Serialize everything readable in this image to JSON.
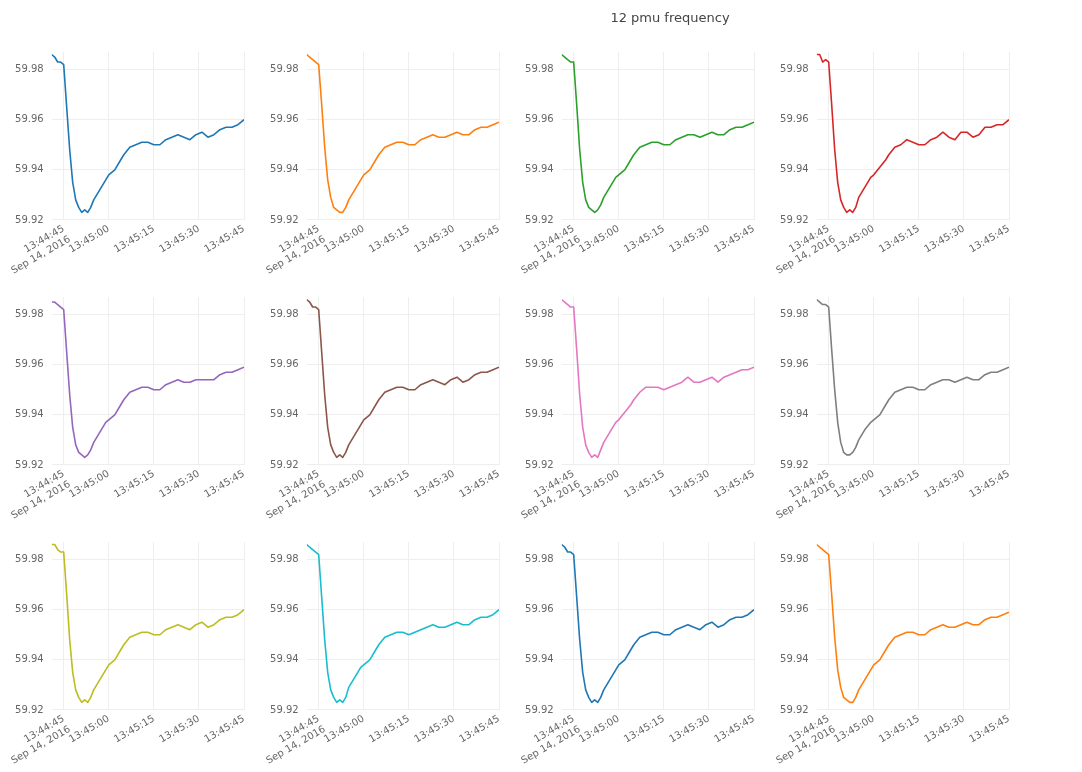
{
  "chart_data": [
    {
      "type": "line",
      "x": [
        "2016-09-14T13:44:41",
        "2016-09-14T13:44:42",
        "2016-09-14T13:44:43",
        "2016-09-14T13:44:44",
        "2016-09-14T13:44:45",
        "2016-09-14T13:44:46",
        "2016-09-14T13:44:47",
        "2016-09-14T13:44:48",
        "2016-09-14T13:44:49",
        "2016-09-14T13:44:50",
        "2016-09-14T13:44:51",
        "2016-09-14T13:44:52",
        "2016-09-14T13:44:53",
        "2016-09-14T13:44:54",
        "2016-09-14T13:44:55",
        "2016-09-14T13:44:57",
        "2016-09-14T13:44:59",
        "2016-09-14T13:45:00",
        "2016-09-14T13:45:02",
        "2016-09-14T13:45:04",
        "2016-09-14T13:45:05",
        "2016-09-14T13:45:07",
        "2016-09-14T13:45:09",
        "2016-09-14T13:45:11",
        "2016-09-14T13:45:13",
        "2016-09-14T13:45:15",
        "2016-09-14T13:45:17",
        "2016-09-14T13:45:19",
        "2016-09-14T13:45:21",
        "2016-09-14T13:45:23",
        "2016-09-14T13:45:25",
        "2016-09-14T13:45:27",
        "2016-09-14T13:45:29",
        "2016-09-14T13:45:31",
        "2016-09-14T13:45:33",
        "2016-09-14T13:45:35",
        "2016-09-14T13:45:37",
        "2016-09-14T13:45:39",
        "2016-09-14T13:45:41",
        "2016-09-14T13:45:43",
        "2016-09-14T13:45:45"
      ],
      "series": [
        {
          "color": "#1f77b4",
          "values": [
            59.986,
            59.985,
            59.983,
            59.983,
            59.982,
            59.965,
            59.948,
            59.935,
            59.928,
            59.925,
            59.923,
            59.924,
            59.923,
            59.925,
            59.928,
            59.932,
            59.936,
            59.938,
            59.94,
            59.944,
            59.946,
            59.949,
            59.95,
            59.951,
            59.951,
            59.95,
            59.95,
            59.952,
            59.953,
            59.954,
            59.953,
            59.952,
            59.954,
            59.955,
            59.953,
            59.954,
            59.956,
            59.957,
            59.957,
            59.958,
            59.96
          ]
        }
      ],
      "xlim": [
        "2016-09-14T13:44:41",
        "2016-09-14T13:45:45"
      ],
      "xticks": [
        {
          "value": "2016-09-14T13:44:45",
          "label": "13:44:45\nSep 14, 2016"
        },
        {
          "value": "2016-09-14T13:45:00",
          "label": "13:45:00"
        },
        {
          "value": "2016-09-14T13:45:15",
          "label": "13:45:15"
        },
        {
          "value": "2016-09-14T13:45:30",
          "label": "13:45:30"
        },
        {
          "value": "2016-09-14T13:45:45",
          "label": "13:45:45"
        }
      ],
      "ylim": [
        59.92,
        59.987
      ],
      "yticks": [
        59.92,
        59.94,
        59.96,
        59.98
      ],
      "grid": true
    },
    {
      "type": "line",
      "x": [
        "2016-09-14T13:44:41",
        "2016-09-14T13:44:42",
        "2016-09-14T13:44:43",
        "2016-09-14T13:44:44",
        "2016-09-14T13:44:45",
        "2016-09-14T13:44:46",
        "2016-09-14T13:44:47",
        "2016-09-14T13:44:48",
        "2016-09-14T13:44:49",
        "2016-09-14T13:44:50",
        "2016-09-14T13:44:51",
        "2016-09-14T13:44:52",
        "2016-09-14T13:44:53",
        "2016-09-14T13:44:54",
        "2016-09-14T13:44:55",
        "2016-09-14T13:44:57",
        "2016-09-14T13:44:59",
        "2016-09-14T13:45:00",
        "2016-09-14T13:45:02",
        "2016-09-14T13:45:04",
        "2016-09-14T13:45:05",
        "2016-09-14T13:45:07",
        "2016-09-14T13:45:09",
        "2016-09-14T13:45:11",
        "2016-09-14T13:45:13",
        "2016-09-14T13:45:15",
        "2016-09-14T13:45:17",
        "2016-09-14T13:45:19",
        "2016-09-14T13:45:21",
        "2016-09-14T13:45:23",
        "2016-09-14T13:45:25",
        "2016-09-14T13:45:27",
        "2016-09-14T13:45:29",
        "2016-09-14T13:45:31",
        "2016-09-14T13:45:33",
        "2016-09-14T13:45:35",
        "2016-09-14T13:45:37",
        "2016-09-14T13:45:39",
        "2016-09-14T13:45:41",
        "2016-09-14T13:45:43",
        "2016-09-14T13:45:45"
      ],
      "series": [
        {
          "color": "#ff7f0e",
          "values": [
            59.986,
            59.985,
            59.984,
            59.983,
            59.982,
            59.966,
            59.949,
            59.936,
            59.929,
            59.925,
            59.924,
            59.923,
            59.923,
            59.925,
            59.928,
            59.932,
            59.936,
            59.938,
            59.94,
            59.944,
            59.946,
            59.949,
            59.95,
            59.951,
            59.951,
            59.95,
            59.95,
            59.952,
            59.953,
            59.954,
            59.953,
            59.953,
            59.954,
            59.955,
            59.954,
            59.954,
            59.956,
            59.957,
            59.957,
            59.958,
            59.959
          ]
        }
      ],
      "xlim": [
        "2016-09-14T13:44:41",
        "2016-09-14T13:45:45"
      ],
      "xticks": [
        {
          "value": "2016-09-14T13:44:45",
          "label": "13:44:45\nSep 14, 2016"
        },
        {
          "value": "2016-09-14T13:45:00",
          "label": "13:45:00"
        },
        {
          "value": "2016-09-14T13:45:15",
          "label": "13:45:15"
        },
        {
          "value": "2016-09-14T13:45:30",
          "label": "13:45:30"
        },
        {
          "value": "2016-09-14T13:45:45",
          "label": "13:45:45"
        }
      ],
      "ylim": [
        59.92,
        59.987
      ],
      "yticks": [
        59.92,
        59.94,
        59.96,
        59.98
      ],
      "grid": true
    },
    {
      "type": "line",
      "x": [
        "2016-09-14T13:44:41",
        "2016-09-14T13:44:42",
        "2016-09-14T13:44:43",
        "2016-09-14T13:44:44",
        "2016-09-14T13:44:45",
        "2016-09-14T13:44:46",
        "2016-09-14T13:44:47",
        "2016-09-14T13:44:48",
        "2016-09-14T13:44:49",
        "2016-09-14T13:44:50",
        "2016-09-14T13:44:51",
        "2016-09-14T13:44:52",
        "2016-09-14T13:44:53",
        "2016-09-14T13:44:54",
        "2016-09-14T13:44:55",
        "2016-09-14T13:44:57",
        "2016-09-14T13:44:59",
        "2016-09-14T13:45:00",
        "2016-09-14T13:45:02",
        "2016-09-14T13:45:04",
        "2016-09-14T13:45:05",
        "2016-09-14T13:45:07",
        "2016-09-14T13:45:09",
        "2016-09-14T13:45:11",
        "2016-09-14T13:45:13",
        "2016-09-14T13:45:15",
        "2016-09-14T13:45:17",
        "2016-09-14T13:45:19",
        "2016-09-14T13:45:21",
        "2016-09-14T13:45:23",
        "2016-09-14T13:45:25",
        "2016-09-14T13:45:27",
        "2016-09-14T13:45:29",
        "2016-09-14T13:45:31",
        "2016-09-14T13:45:33",
        "2016-09-14T13:45:35",
        "2016-09-14T13:45:37",
        "2016-09-14T13:45:39",
        "2016-09-14T13:45:41",
        "2016-09-14T13:45:43",
        "2016-09-14T13:45:45"
      ],
      "title": "12 pmu frequency",
      "series": [
        {
          "color": "#2ca02c",
          "values": [
            59.986,
            59.985,
            59.984,
            59.983,
            59.983,
            59.966,
            59.948,
            59.935,
            59.928,
            59.925,
            59.924,
            59.923,
            59.924,
            59.926,
            59.929,
            59.933,
            59.937,
            59.938,
            59.94,
            59.944,
            59.946,
            59.949,
            59.95,
            59.951,
            59.951,
            59.95,
            59.95,
            59.952,
            59.953,
            59.954,
            59.954,
            59.953,
            59.954,
            59.955,
            59.954,
            59.954,
            59.956,
            59.957,
            59.957,
            59.958,
            59.959
          ]
        }
      ],
      "xlim": [
        "2016-09-14T13:44:41",
        "2016-09-14T13:45:45"
      ],
      "xticks": [
        {
          "value": "2016-09-14T13:44:45",
          "label": "13:44:45\nSep 14, 2016"
        },
        {
          "value": "2016-09-14T13:45:00",
          "label": "13:45:00"
        },
        {
          "value": "2016-09-14T13:45:15",
          "label": "13:45:15"
        },
        {
          "value": "2016-09-14T13:45:30",
          "label": "13:45:30"
        },
        {
          "value": "2016-09-14T13:45:45",
          "label": "13:45:45"
        }
      ],
      "ylim": [
        59.92,
        59.987
      ],
      "yticks": [
        59.92,
        59.94,
        59.96,
        59.98
      ],
      "grid": true
    },
    {
      "type": "line",
      "x": [
        "2016-09-14T13:44:41",
        "2016-09-14T13:44:42",
        "2016-09-14T13:44:43",
        "2016-09-14T13:44:44",
        "2016-09-14T13:44:45",
        "2016-09-14T13:44:46",
        "2016-09-14T13:44:47",
        "2016-09-14T13:44:48",
        "2016-09-14T13:44:49",
        "2016-09-14T13:44:50",
        "2016-09-14T13:44:51",
        "2016-09-14T13:44:52",
        "2016-09-14T13:44:53",
        "2016-09-14T13:44:54",
        "2016-09-14T13:44:55",
        "2016-09-14T13:44:57",
        "2016-09-14T13:44:59",
        "2016-09-14T13:45:00",
        "2016-09-14T13:45:02",
        "2016-09-14T13:45:04",
        "2016-09-14T13:45:05",
        "2016-09-14T13:45:07",
        "2016-09-14T13:45:09",
        "2016-09-14T13:45:11",
        "2016-09-14T13:45:13",
        "2016-09-14T13:45:15",
        "2016-09-14T13:45:17",
        "2016-09-14T13:45:19",
        "2016-09-14T13:45:21",
        "2016-09-14T13:45:23",
        "2016-09-14T13:45:25",
        "2016-09-14T13:45:27",
        "2016-09-14T13:45:29",
        "2016-09-14T13:45:31",
        "2016-09-14T13:45:33",
        "2016-09-14T13:45:35",
        "2016-09-14T13:45:37",
        "2016-09-14T13:45:39",
        "2016-09-14T13:45:41",
        "2016-09-14T13:45:43",
        "2016-09-14T13:45:45"
      ],
      "series": [
        {
          "color": "#d62728",
          "values": [
            59.986,
            59.986,
            59.983,
            59.984,
            59.983,
            59.966,
            59.948,
            59.935,
            59.928,
            59.925,
            59.923,
            59.924,
            59.923,
            59.925,
            59.929,
            59.933,
            59.937,
            59.938,
            59.941,
            59.944,
            59.946,
            59.949,
            59.95,
            59.952,
            59.951,
            59.95,
            59.95,
            59.952,
            59.953,
            59.955,
            59.953,
            59.952,
            59.955,
            59.955,
            59.953,
            59.954,
            59.957,
            59.957,
            59.958,
            59.958,
            59.96
          ]
        }
      ],
      "xlim": [
        "2016-09-14T13:44:41",
        "2016-09-14T13:45:45"
      ],
      "xticks": [
        {
          "value": "2016-09-14T13:44:45",
          "label": "13:44:45\nSep 14, 2016"
        },
        {
          "value": "2016-09-14T13:45:00",
          "label": "13:45:00"
        },
        {
          "value": "2016-09-14T13:45:15",
          "label": "13:45:15"
        },
        {
          "value": "2016-09-14T13:45:30",
          "label": "13:45:30"
        },
        {
          "value": "2016-09-14T13:45:45",
          "label": "13:45:45"
        }
      ],
      "ylim": [
        59.92,
        59.987
      ],
      "yticks": [
        59.92,
        59.94,
        59.96,
        59.98
      ],
      "grid": true
    },
    {
      "type": "line",
      "x": [
        "2016-09-14T13:44:41",
        "2016-09-14T13:44:42",
        "2016-09-14T13:44:43",
        "2016-09-14T13:44:44",
        "2016-09-14T13:44:45",
        "2016-09-14T13:44:46",
        "2016-09-14T13:44:47",
        "2016-09-14T13:44:48",
        "2016-09-14T13:44:49",
        "2016-09-14T13:44:50",
        "2016-09-14T13:44:51",
        "2016-09-14T13:44:52",
        "2016-09-14T13:44:53",
        "2016-09-14T13:44:54",
        "2016-09-14T13:44:55",
        "2016-09-14T13:44:57",
        "2016-09-14T13:44:59",
        "2016-09-14T13:45:00",
        "2016-09-14T13:45:02",
        "2016-09-14T13:45:04",
        "2016-09-14T13:45:05",
        "2016-09-14T13:45:07",
        "2016-09-14T13:45:09",
        "2016-09-14T13:45:11",
        "2016-09-14T13:45:13",
        "2016-09-14T13:45:15",
        "2016-09-14T13:45:17",
        "2016-09-14T13:45:19",
        "2016-09-14T13:45:21",
        "2016-09-14T13:45:23",
        "2016-09-14T13:45:25",
        "2016-09-14T13:45:27",
        "2016-09-14T13:45:29",
        "2016-09-14T13:45:31",
        "2016-09-14T13:45:33",
        "2016-09-14T13:45:35",
        "2016-09-14T13:45:37",
        "2016-09-14T13:45:39",
        "2016-09-14T13:45:41",
        "2016-09-14T13:45:43",
        "2016-09-14T13:45:45"
      ],
      "series": [
        {
          "color": "#9467bd",
          "values": [
            59.985,
            59.985,
            59.984,
            59.983,
            59.982,
            59.965,
            59.948,
            59.935,
            59.928,
            59.925,
            59.924,
            59.923,
            59.924,
            59.926,
            59.929,
            59.933,
            59.937,
            59.938,
            59.94,
            59.944,
            59.946,
            59.949,
            59.95,
            59.951,
            59.951,
            59.95,
            59.95,
            59.952,
            59.953,
            59.954,
            59.953,
            59.953,
            59.954,
            59.954,
            59.954,
            59.954,
            59.956,
            59.957,
            59.957,
            59.958,
            59.959
          ]
        }
      ],
      "xlim": [
        "2016-09-14T13:44:41",
        "2016-09-14T13:45:45"
      ],
      "xticks": [
        {
          "value": "2016-09-14T13:44:45",
          "label": "13:44:45\nSep 14, 2016"
        },
        {
          "value": "2016-09-14T13:45:00",
          "label": "13:45:00"
        },
        {
          "value": "2016-09-14T13:45:15",
          "label": "13:45:15"
        },
        {
          "value": "2016-09-14T13:45:30",
          "label": "13:45:30"
        },
        {
          "value": "2016-09-14T13:45:45",
          "label": "13:45:45"
        }
      ],
      "ylim": [
        59.92,
        59.987
      ],
      "yticks": [
        59.92,
        59.94,
        59.96,
        59.98
      ],
      "grid": true
    },
    {
      "type": "line",
      "x": [
        "2016-09-14T13:44:41",
        "2016-09-14T13:44:42",
        "2016-09-14T13:44:43",
        "2016-09-14T13:44:44",
        "2016-09-14T13:44:45",
        "2016-09-14T13:44:46",
        "2016-09-14T13:44:47",
        "2016-09-14T13:44:48",
        "2016-09-14T13:44:49",
        "2016-09-14T13:44:50",
        "2016-09-14T13:44:51",
        "2016-09-14T13:44:52",
        "2016-09-14T13:44:53",
        "2016-09-14T13:44:54",
        "2016-09-14T13:44:55",
        "2016-09-14T13:44:57",
        "2016-09-14T13:44:59",
        "2016-09-14T13:45:00",
        "2016-09-14T13:45:02",
        "2016-09-14T13:45:04",
        "2016-09-14T13:45:05",
        "2016-09-14T13:45:07",
        "2016-09-14T13:45:09",
        "2016-09-14T13:45:11",
        "2016-09-14T13:45:13",
        "2016-09-14T13:45:15",
        "2016-09-14T13:45:17",
        "2016-09-14T13:45:19",
        "2016-09-14T13:45:21",
        "2016-09-14T13:45:23",
        "2016-09-14T13:45:25",
        "2016-09-14T13:45:27",
        "2016-09-14T13:45:29",
        "2016-09-14T13:45:31",
        "2016-09-14T13:45:33",
        "2016-09-14T13:45:35",
        "2016-09-14T13:45:37",
        "2016-09-14T13:45:39",
        "2016-09-14T13:45:41",
        "2016-09-14T13:45:43",
        "2016-09-14T13:45:45"
      ],
      "series": [
        {
          "color": "#8c564b",
          "values": [
            59.986,
            59.985,
            59.983,
            59.983,
            59.982,
            59.965,
            59.948,
            59.935,
            59.928,
            59.925,
            59.923,
            59.924,
            59.923,
            59.925,
            59.928,
            59.932,
            59.936,
            59.938,
            59.94,
            59.944,
            59.946,
            59.949,
            59.95,
            59.951,
            59.951,
            59.95,
            59.95,
            59.952,
            59.953,
            59.954,
            59.953,
            59.952,
            59.954,
            59.955,
            59.953,
            59.954,
            59.956,
            59.957,
            59.957,
            59.958,
            59.959
          ]
        }
      ],
      "xlim": [
        "2016-09-14T13:44:41",
        "2016-09-14T13:45:45"
      ],
      "xticks": [
        {
          "value": "2016-09-14T13:44:45",
          "label": "13:44:45\nSep 14, 2016"
        },
        {
          "value": "2016-09-14T13:45:00",
          "label": "13:45:00"
        },
        {
          "value": "2016-09-14T13:45:15",
          "label": "13:45:15"
        },
        {
          "value": "2016-09-14T13:45:30",
          "label": "13:45:30"
        },
        {
          "value": "2016-09-14T13:45:45",
          "label": "13:45:45"
        }
      ],
      "ylim": [
        59.92,
        59.987
      ],
      "yticks": [
        59.92,
        59.94,
        59.96,
        59.98
      ],
      "grid": true
    },
    {
      "type": "line",
      "x": [
        "2016-09-14T13:44:41",
        "2016-09-14T13:44:42",
        "2016-09-14T13:44:43",
        "2016-09-14T13:44:44",
        "2016-09-14T13:44:45",
        "2016-09-14T13:44:46",
        "2016-09-14T13:44:47",
        "2016-09-14T13:44:48",
        "2016-09-14T13:44:49",
        "2016-09-14T13:44:50",
        "2016-09-14T13:44:51",
        "2016-09-14T13:44:52",
        "2016-09-14T13:44:53",
        "2016-09-14T13:44:54",
        "2016-09-14T13:44:55",
        "2016-09-14T13:44:57",
        "2016-09-14T13:44:59",
        "2016-09-14T13:45:00",
        "2016-09-14T13:45:02",
        "2016-09-14T13:45:04",
        "2016-09-14T13:45:05",
        "2016-09-14T13:45:07",
        "2016-09-14T13:45:09",
        "2016-09-14T13:45:11",
        "2016-09-14T13:45:13",
        "2016-09-14T13:45:15",
        "2016-09-14T13:45:17",
        "2016-09-14T13:45:19",
        "2016-09-14T13:45:21",
        "2016-09-14T13:45:23",
        "2016-09-14T13:45:25",
        "2016-09-14T13:45:27",
        "2016-09-14T13:45:29",
        "2016-09-14T13:45:31",
        "2016-09-14T13:45:33",
        "2016-09-14T13:45:35",
        "2016-09-14T13:45:37",
        "2016-09-14T13:45:39",
        "2016-09-14T13:45:41",
        "2016-09-14T13:45:43",
        "2016-09-14T13:45:45"
      ],
      "series": [
        {
          "color": "#e377c2",
          "values": [
            59.986,
            59.985,
            59.984,
            59.983,
            59.983,
            59.966,
            59.948,
            59.935,
            59.928,
            59.925,
            59.923,
            59.924,
            59.923,
            59.926,
            59.929,
            59.933,
            59.937,
            59.938,
            59.941,
            59.944,
            59.946,
            59.949,
            59.951,
            59.951,
            59.951,
            59.95,
            59.951,
            59.952,
            59.953,
            59.955,
            59.953,
            59.953,
            59.954,
            59.955,
            59.953,
            59.955,
            59.956,
            59.957,
            59.958,
            59.958,
            59.959
          ]
        }
      ],
      "xlim": [
        "2016-09-14T13:44:41",
        "2016-09-14T13:45:45"
      ],
      "xticks": [
        {
          "value": "2016-09-14T13:44:45",
          "label": "13:44:45\nSep 14, 2016"
        },
        {
          "value": "2016-09-14T13:45:00",
          "label": "13:45:00"
        },
        {
          "value": "2016-09-14T13:45:15",
          "label": "13:45:15"
        },
        {
          "value": "2016-09-14T13:45:30",
          "label": "13:45:30"
        },
        {
          "value": "2016-09-14T13:45:45",
          "label": "13:45:45"
        }
      ],
      "ylim": [
        59.92,
        59.987
      ],
      "yticks": [
        59.92,
        59.94,
        59.96,
        59.98
      ],
      "grid": true
    },
    {
      "type": "line",
      "x": [
        "2016-09-14T13:44:41",
        "2016-09-14T13:44:42",
        "2016-09-14T13:44:43",
        "2016-09-14T13:44:44",
        "2016-09-14T13:44:45",
        "2016-09-14T13:44:46",
        "2016-09-14T13:44:47",
        "2016-09-14T13:44:48",
        "2016-09-14T13:44:49",
        "2016-09-14T13:44:50",
        "2016-09-14T13:44:51",
        "2016-09-14T13:44:52",
        "2016-09-14T13:44:53",
        "2016-09-14T13:44:54",
        "2016-09-14T13:44:55",
        "2016-09-14T13:44:57",
        "2016-09-14T13:44:59",
        "2016-09-14T13:45:00",
        "2016-09-14T13:45:02",
        "2016-09-14T13:45:04",
        "2016-09-14T13:45:05",
        "2016-09-14T13:45:07",
        "2016-09-14T13:45:09",
        "2016-09-14T13:45:11",
        "2016-09-14T13:45:13",
        "2016-09-14T13:45:15",
        "2016-09-14T13:45:17",
        "2016-09-14T13:45:19",
        "2016-09-14T13:45:21",
        "2016-09-14T13:45:23",
        "2016-09-14T13:45:25",
        "2016-09-14T13:45:27",
        "2016-09-14T13:45:29",
        "2016-09-14T13:45:31",
        "2016-09-14T13:45:33",
        "2016-09-14T13:45:35",
        "2016-09-14T13:45:37",
        "2016-09-14T13:45:39",
        "2016-09-14T13:45:41",
        "2016-09-14T13:45:43",
        "2016-09-14T13:45:45"
      ],
      "series": [
        {
          "color": "#7f7f7f",
          "values": [
            59.986,
            59.985,
            59.984,
            59.984,
            59.983,
            59.966,
            59.95,
            59.937,
            59.929,
            59.925,
            59.924,
            59.924,
            59.925,
            59.927,
            59.93,
            59.934,
            59.937,
            59.938,
            59.94,
            59.944,
            59.946,
            59.949,
            59.95,
            59.951,
            59.951,
            59.95,
            59.95,
            59.952,
            59.953,
            59.954,
            59.954,
            59.953,
            59.954,
            59.955,
            59.954,
            59.954,
            59.956,
            59.957,
            59.957,
            59.958,
            59.959
          ]
        }
      ],
      "xlim": [
        "2016-09-14T13:44:41",
        "2016-09-14T13:45:45"
      ],
      "xticks": [
        {
          "value": "2016-09-14T13:44:45",
          "label": "13:44:45\nSep 14, 2016"
        },
        {
          "value": "2016-09-14T13:45:00",
          "label": "13:45:00"
        },
        {
          "value": "2016-09-14T13:45:15",
          "label": "13:45:15"
        },
        {
          "value": "2016-09-14T13:45:30",
          "label": "13:45:30"
        },
        {
          "value": "2016-09-14T13:45:45",
          "label": "13:45:45"
        }
      ],
      "ylim": [
        59.92,
        59.987
      ],
      "yticks": [
        59.92,
        59.94,
        59.96,
        59.98
      ],
      "grid": true
    },
    {
      "type": "line",
      "x": [
        "2016-09-14T13:44:41",
        "2016-09-14T13:44:42",
        "2016-09-14T13:44:43",
        "2016-09-14T13:44:44",
        "2016-09-14T13:44:45",
        "2016-09-14T13:44:46",
        "2016-09-14T13:44:47",
        "2016-09-14T13:44:48",
        "2016-09-14T13:44:49",
        "2016-09-14T13:44:50",
        "2016-09-14T13:44:51",
        "2016-09-14T13:44:52",
        "2016-09-14T13:44:53",
        "2016-09-14T13:44:54",
        "2016-09-14T13:44:55",
        "2016-09-14T13:44:57",
        "2016-09-14T13:44:59",
        "2016-09-14T13:45:00",
        "2016-09-14T13:45:02",
        "2016-09-14T13:45:04",
        "2016-09-14T13:45:05",
        "2016-09-14T13:45:07",
        "2016-09-14T13:45:09",
        "2016-09-14T13:45:11",
        "2016-09-14T13:45:13",
        "2016-09-14T13:45:15",
        "2016-09-14T13:45:17",
        "2016-09-14T13:45:19",
        "2016-09-14T13:45:21",
        "2016-09-14T13:45:23",
        "2016-09-14T13:45:25",
        "2016-09-14T13:45:27",
        "2016-09-14T13:45:29",
        "2016-09-14T13:45:31",
        "2016-09-14T13:45:33",
        "2016-09-14T13:45:35",
        "2016-09-14T13:45:37",
        "2016-09-14T13:45:39",
        "2016-09-14T13:45:41",
        "2016-09-14T13:45:43",
        "2016-09-14T13:45:45"
      ],
      "series": [
        {
          "color": "#bcbd22",
          "values": [
            59.986,
            59.986,
            59.984,
            59.983,
            59.983,
            59.966,
            59.948,
            59.935,
            59.928,
            59.925,
            59.923,
            59.924,
            59.923,
            59.925,
            59.928,
            59.932,
            59.936,
            59.938,
            59.94,
            59.944,
            59.946,
            59.949,
            59.95,
            59.951,
            59.951,
            59.95,
            59.95,
            59.952,
            59.953,
            59.954,
            59.953,
            59.952,
            59.954,
            59.955,
            59.953,
            59.954,
            59.956,
            59.957,
            59.957,
            59.958,
            59.96
          ]
        }
      ],
      "xlim": [
        "2016-09-14T13:44:41",
        "2016-09-14T13:45:45"
      ],
      "xticks": [
        {
          "value": "2016-09-14T13:44:45",
          "label": "13:44:45\nSep 14, 2016"
        },
        {
          "value": "2016-09-14T13:45:00",
          "label": "13:45:00"
        },
        {
          "value": "2016-09-14T13:45:15",
          "label": "13:45:15"
        },
        {
          "value": "2016-09-14T13:45:30",
          "label": "13:45:30"
        },
        {
          "value": "2016-09-14T13:45:45",
          "label": "13:45:45"
        }
      ],
      "ylim": [
        59.92,
        59.987
      ],
      "yticks": [
        59.92,
        59.94,
        59.96,
        59.98
      ],
      "grid": true
    },
    {
      "type": "line",
      "x": [
        "2016-09-14T13:44:41",
        "2016-09-14T13:44:42",
        "2016-09-14T13:44:43",
        "2016-09-14T13:44:44",
        "2016-09-14T13:44:45",
        "2016-09-14T13:44:46",
        "2016-09-14T13:44:47",
        "2016-09-14T13:44:48",
        "2016-09-14T13:44:49",
        "2016-09-14T13:44:50",
        "2016-09-14T13:44:51",
        "2016-09-14T13:44:52",
        "2016-09-14T13:44:53",
        "2016-09-14T13:44:54",
        "2016-09-14T13:44:55",
        "2016-09-14T13:44:57",
        "2016-09-14T13:44:59",
        "2016-09-14T13:45:00",
        "2016-09-14T13:45:02",
        "2016-09-14T13:45:04",
        "2016-09-14T13:45:05",
        "2016-09-14T13:45:07",
        "2016-09-14T13:45:09",
        "2016-09-14T13:45:11",
        "2016-09-14T13:45:13",
        "2016-09-14T13:45:15",
        "2016-09-14T13:45:17",
        "2016-09-14T13:45:19",
        "2016-09-14T13:45:21",
        "2016-09-14T13:45:23",
        "2016-09-14T13:45:25",
        "2016-09-14T13:45:27",
        "2016-09-14T13:45:29",
        "2016-09-14T13:45:31",
        "2016-09-14T13:45:33",
        "2016-09-14T13:45:35",
        "2016-09-14T13:45:37",
        "2016-09-14T13:45:39",
        "2016-09-14T13:45:41",
        "2016-09-14T13:45:43",
        "2016-09-14T13:45:45"
      ],
      "series": [
        {
          "color": "#17becf",
          "values": [
            59.986,
            59.985,
            59.984,
            59.983,
            59.982,
            59.965,
            59.948,
            59.935,
            59.928,
            59.925,
            59.923,
            59.924,
            59.923,
            59.925,
            59.929,
            59.933,
            59.937,
            59.938,
            59.94,
            59.944,
            59.946,
            59.949,
            59.95,
            59.951,
            59.951,
            59.95,
            59.951,
            59.952,
            59.953,
            59.954,
            59.953,
            59.953,
            59.954,
            59.955,
            59.954,
            59.954,
            59.956,
            59.957,
            59.957,
            59.958,
            59.96
          ]
        }
      ],
      "xlim": [
        "2016-09-14T13:44:41",
        "2016-09-14T13:45:45"
      ],
      "xticks": [
        {
          "value": "2016-09-14T13:44:45",
          "label": "13:44:45\nSep 14, 2016"
        },
        {
          "value": "2016-09-14T13:45:00",
          "label": "13:45:00"
        },
        {
          "value": "2016-09-14T13:45:15",
          "label": "13:45:15"
        },
        {
          "value": "2016-09-14T13:45:30",
          "label": "13:45:30"
        },
        {
          "value": "2016-09-14T13:45:45",
          "label": "13:45:45"
        }
      ],
      "ylim": [
        59.92,
        59.987
      ],
      "yticks": [
        59.92,
        59.94,
        59.96,
        59.98
      ],
      "grid": true
    },
    {
      "type": "line",
      "x": [
        "2016-09-14T13:44:41",
        "2016-09-14T13:44:42",
        "2016-09-14T13:44:43",
        "2016-09-14T13:44:44",
        "2016-09-14T13:44:45",
        "2016-09-14T13:44:46",
        "2016-09-14T13:44:47",
        "2016-09-14T13:44:48",
        "2016-09-14T13:44:49",
        "2016-09-14T13:44:50",
        "2016-09-14T13:44:51",
        "2016-09-14T13:44:52",
        "2016-09-14T13:44:53",
        "2016-09-14T13:44:54",
        "2016-09-14T13:44:55",
        "2016-09-14T13:44:57",
        "2016-09-14T13:44:59",
        "2016-09-14T13:45:00",
        "2016-09-14T13:45:02",
        "2016-09-14T13:45:04",
        "2016-09-14T13:45:05",
        "2016-09-14T13:45:07",
        "2016-09-14T13:45:09",
        "2016-09-14T13:45:11",
        "2016-09-14T13:45:13",
        "2016-09-14T13:45:15",
        "2016-09-14T13:45:17",
        "2016-09-14T13:45:19",
        "2016-09-14T13:45:21",
        "2016-09-14T13:45:23",
        "2016-09-14T13:45:25",
        "2016-09-14T13:45:27",
        "2016-09-14T13:45:29",
        "2016-09-14T13:45:31",
        "2016-09-14T13:45:33",
        "2016-09-14T13:45:35",
        "2016-09-14T13:45:37",
        "2016-09-14T13:45:39",
        "2016-09-14T13:45:41",
        "2016-09-14T13:45:43",
        "2016-09-14T13:45:45"
      ],
      "series": [
        {
          "color": "#1f77b4",
          "values": [
            59.986,
            59.985,
            59.983,
            59.983,
            59.982,
            59.965,
            59.948,
            59.935,
            59.928,
            59.925,
            59.923,
            59.924,
            59.923,
            59.925,
            59.928,
            59.932,
            59.936,
            59.938,
            59.94,
            59.944,
            59.946,
            59.949,
            59.95,
            59.951,
            59.951,
            59.95,
            59.95,
            59.952,
            59.953,
            59.954,
            59.953,
            59.952,
            59.954,
            59.955,
            59.953,
            59.954,
            59.956,
            59.957,
            59.957,
            59.958,
            59.96
          ]
        }
      ],
      "xlim": [
        "2016-09-14T13:44:41",
        "2016-09-14T13:45:45"
      ],
      "xticks": [
        {
          "value": "2016-09-14T13:44:45",
          "label": "13:44:45\nSep 14, 2016"
        },
        {
          "value": "2016-09-14T13:45:00",
          "label": "13:45:00"
        },
        {
          "value": "2016-09-14T13:45:15",
          "label": "13:45:15"
        },
        {
          "value": "2016-09-14T13:45:30",
          "label": "13:45:30"
        },
        {
          "value": "2016-09-14T13:45:45",
          "label": "13:45:45"
        }
      ],
      "ylim": [
        59.92,
        59.987
      ],
      "yticks": [
        59.92,
        59.94,
        59.96,
        59.98
      ],
      "grid": true
    },
    {
      "type": "line",
      "x": [
        "2016-09-14T13:44:41",
        "2016-09-14T13:44:42",
        "2016-09-14T13:44:43",
        "2016-09-14T13:44:44",
        "2016-09-14T13:44:45",
        "2016-09-14T13:44:46",
        "2016-09-14T13:44:47",
        "2016-09-14T13:44:48",
        "2016-09-14T13:44:49",
        "2016-09-14T13:44:50",
        "2016-09-14T13:44:51",
        "2016-09-14T13:44:52",
        "2016-09-14T13:44:53",
        "2016-09-14T13:44:54",
        "2016-09-14T13:44:55",
        "2016-09-14T13:44:57",
        "2016-09-14T13:44:59",
        "2016-09-14T13:45:00",
        "2016-09-14T13:45:02",
        "2016-09-14T13:45:04",
        "2016-09-14T13:45:05",
        "2016-09-14T13:45:07",
        "2016-09-14T13:45:09",
        "2016-09-14T13:45:11",
        "2016-09-14T13:45:13",
        "2016-09-14T13:45:15",
        "2016-09-14T13:45:17",
        "2016-09-14T13:45:19",
        "2016-09-14T13:45:21",
        "2016-09-14T13:45:23",
        "2016-09-14T13:45:25",
        "2016-09-14T13:45:27",
        "2016-09-14T13:45:29",
        "2016-09-14T13:45:31",
        "2016-09-14T13:45:33",
        "2016-09-14T13:45:35",
        "2016-09-14T13:45:37",
        "2016-09-14T13:45:39",
        "2016-09-14T13:45:41",
        "2016-09-14T13:45:43",
        "2016-09-14T13:45:45"
      ],
      "series": [
        {
          "color": "#ff7f0e",
          "values": [
            59.986,
            59.985,
            59.984,
            59.983,
            59.982,
            59.966,
            59.949,
            59.936,
            59.929,
            59.925,
            59.924,
            59.923,
            59.923,
            59.925,
            59.928,
            59.932,
            59.936,
            59.938,
            59.94,
            59.944,
            59.946,
            59.949,
            59.95,
            59.951,
            59.951,
            59.95,
            59.95,
            59.952,
            59.953,
            59.954,
            59.953,
            59.953,
            59.954,
            59.955,
            59.954,
            59.954,
            59.956,
            59.957,
            59.957,
            59.958,
            59.959
          ]
        }
      ],
      "xlim": [
        "2016-09-14T13:44:41",
        "2016-09-14T13:45:45"
      ],
      "xticks": [
        {
          "value": "2016-09-14T13:44:45",
          "label": "13:44:45\nSep 14, 2016"
        },
        {
          "value": "2016-09-14T13:45:00",
          "label": "13:45:00"
        },
        {
          "value": "2016-09-14T13:45:15",
          "label": "13:45:15"
        },
        {
          "value": "2016-09-14T13:45:30",
          "label": "13:45:30"
        },
        {
          "value": "2016-09-14T13:45:45",
          "label": "13:45:45"
        }
      ],
      "ylim": [
        59.92,
        59.987
      ],
      "yticks": [
        59.92,
        59.94,
        59.96,
        59.98
      ],
      "grid": true
    }
  ]
}
